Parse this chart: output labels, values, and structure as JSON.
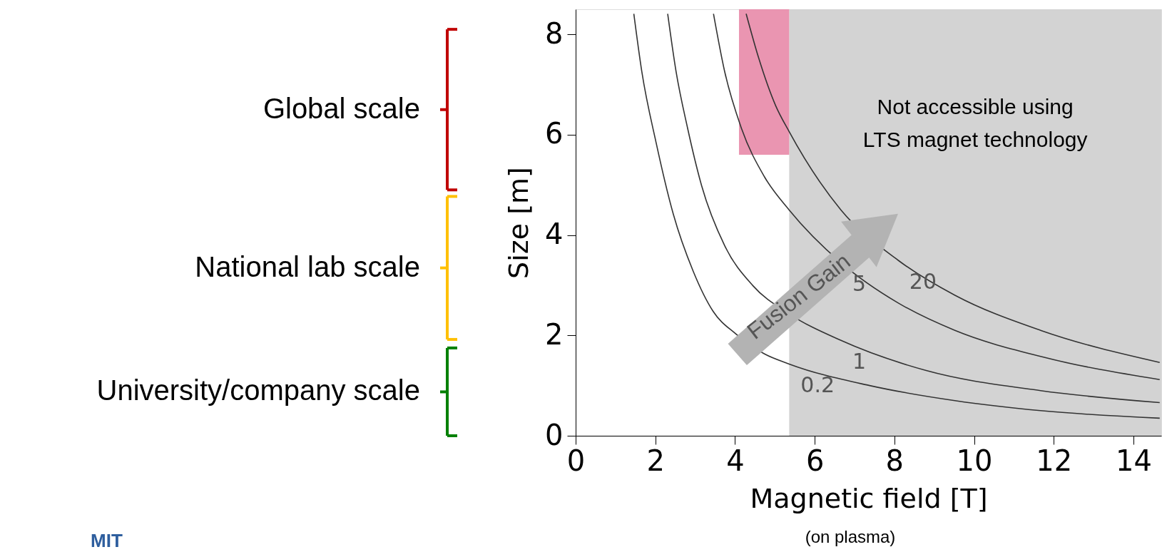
{
  "chart_data": {
    "type": "line",
    "xlabel": "Magnetic field [T]",
    "ylabel": "Size [m]",
    "xlim": [
      0,
      14.7
    ],
    "ylim": [
      0,
      8.5
    ],
    "xticks": [
      0,
      2,
      4,
      6,
      8,
      10,
      12,
      14
    ],
    "yticks": [
      0,
      2,
      4,
      6,
      8
    ],
    "grid": false,
    "series": [
      {
        "name": "0.2",
        "color": "#333333",
        "x": [
          1.46,
          1.66,
          2.02,
          2.45,
          2.95,
          3.45,
          4.02,
          4.74,
          5.36,
          7.38,
          9.52,
          11.67,
          14.66
        ],
        "values": [
          8.41,
          7.26,
          5.84,
          4.42,
          3.28,
          2.48,
          2.03,
          1.63,
          1.43,
          1.0,
          0.7,
          0.5,
          0.35
        ]
      },
      {
        "name": "1",
        "color": "#333333",
        "x": [
          2.31,
          2.52,
          2.81,
          3.16,
          3.74,
          4.45,
          5.36,
          6.66,
          8.8,
          11.67,
          14.66
        ],
        "values": [
          8.41,
          7.26,
          6.13,
          4.99,
          3.79,
          2.99,
          2.43,
          1.9,
          1.3,
          0.9,
          0.66
        ]
      },
      {
        "name": "5",
        "color": "#333333",
        "x": [
          3.46,
          3.74,
          4.16,
          4.74,
          5.36,
          6.66,
          8.09,
          9.52,
          11.67,
          14.66
        ],
        "values": [
          8.41,
          7.26,
          6.13,
          5.16,
          4.5,
          3.45,
          2.65,
          2.1,
          1.58,
          1.12
        ]
      },
      {
        "name": "20",
        "color": "#333333",
        "x": [
          4.28,
          4.59,
          5.02,
          5.36,
          6.66,
          8.09,
          9.52,
          11.67,
          14.66
        ],
        "values": [
          8.41,
          7.54,
          6.58,
          6.06,
          4.5,
          3.5,
          2.8,
          2.1,
          1.46
        ]
      }
    ],
    "bands": [
      {
        "axis": "x",
        "from": 5.36,
        "to": 14.7,
        "label": "Not accessible using\nLTS magnet technology",
        "color": "#d3d3d3"
      }
    ],
    "annotations": [
      "Fusion Gain",
      "(on plasma)",
      "MIT",
      "Global scale",
      "National lab scale",
      "University/company scale"
    ]
  }
}
